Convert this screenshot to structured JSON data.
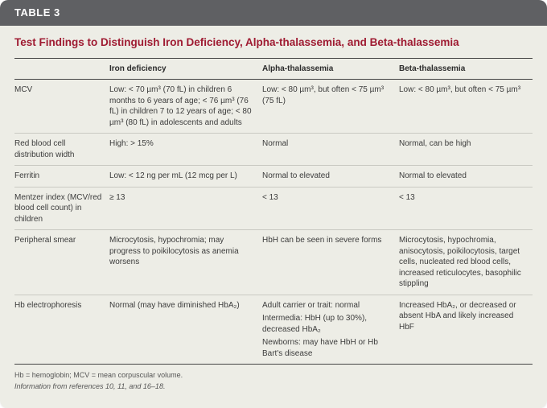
{
  "header": {
    "label": "TABLE 3"
  },
  "title": "Test Findings to Distinguish Iron Deficiency, Alpha-thalassemia, and Beta-thalassemia",
  "columns": {
    "label": "",
    "iron": "Iron deficiency",
    "alpha": "Alpha-thalassemia",
    "beta": "Beta-thalassemia"
  },
  "rows": {
    "mcv": {
      "label": "MCV",
      "iron": "Low: < 70 µm³ (70 fL) in children 6 months to 6 years of age; < 76 µm³ (76 fL) in children 7 to 12 years of age; < 80 µm³ (80 fL) in adolescents and adults",
      "alpha": "Low: < 80 µm³, but often < 75 µm³ (75 fL)",
      "beta": "Low: < 80 µm³, but often < 75 µm³"
    },
    "rdw": {
      "label": "Red blood cell distribution width",
      "iron": "High: > 15%",
      "alpha": "Normal",
      "beta": "Normal, can be high"
    },
    "ferritin": {
      "label": "Ferritin",
      "iron": "Low: < 12 ng per mL (12 mcg per L)",
      "alpha": "Normal to elevated",
      "beta": "Normal to elevated"
    },
    "mentzer": {
      "label": "Mentzer index (MCV/red blood cell count) in children",
      "iron": "≥ 13",
      "alpha": "< 13",
      "beta": "< 13"
    },
    "smear": {
      "label": "Peripheral smear",
      "iron": "Microcytosis, hypochromia; may progress to poikilocytosis as anemia worsens",
      "alpha": "HbH can be seen in severe forms",
      "beta": "Microcytosis, hypochromia, anisocytosis, poikilocytosis, target cells, nucleated red blood cells, increased reticulocytes, basophilic stippling"
    },
    "electro": {
      "label": "Hb electrophoresis",
      "iron": "Normal (may have diminished HbA₂)",
      "alpha1": "Adult carrier or trait: normal",
      "alpha2": "Intermedia: HbH (up to 30%), decreased HbA₂",
      "alpha3": "Newborns: may have HbH or Hb Bart's disease",
      "beta": "Increased HbA₂, or decreased or absent HbA and likely increased HbF"
    }
  },
  "footnotes": {
    "abbr": "Hb = hemoglobin; MCV = mean corpuscular volume.",
    "source": "Information from references 10, 11, and 16–18."
  },
  "colors": {
    "header_bg": "#5f6063",
    "header_text": "#ffffff",
    "title_color": "#9f1b32",
    "card_bg": "#edede6",
    "text_color": "#3c3c3c",
    "rule_dark": "#454545",
    "rule_light": "#c9c9c2"
  }
}
